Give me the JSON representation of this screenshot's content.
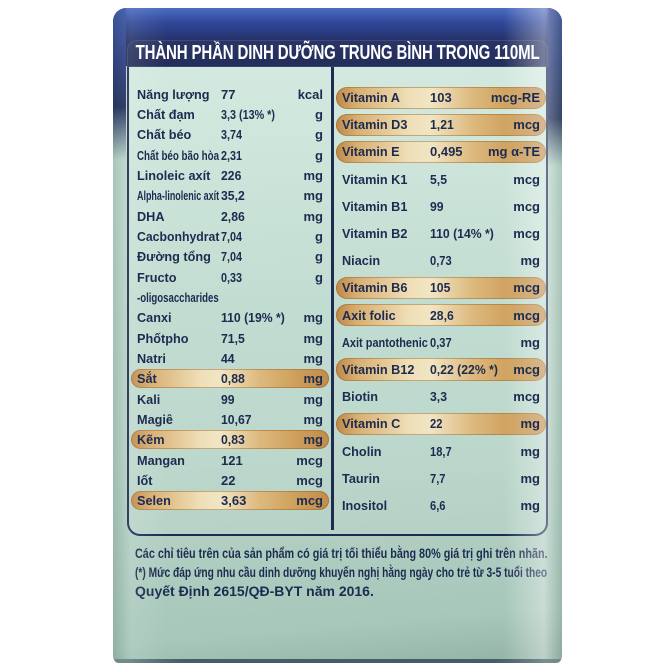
{
  "header": {
    "title": "THÀNH PHẦN DINH DƯỠNG TRUNG BÌNH TRONG 110ML"
  },
  "table": {
    "left_rows": [
      {
        "label": "Năng lượng",
        "value": "77",
        "unit": "kcal",
        "highlight": false
      },
      {
        "label": "Chất đạm",
        "value": "3,3 (13% *)",
        "unit": "g",
        "highlight": false
      },
      {
        "label": "Chất béo",
        "value": "3,74",
        "unit": "g",
        "highlight": false
      },
      {
        "label": "Chất béo bão hòa",
        "value": "2,31",
        "unit": "g",
        "highlight": false
      },
      {
        "label": "Linoleic axít",
        "value": "226",
        "unit": "mg",
        "highlight": false
      },
      {
        "label": "Alpha-linolenic axít",
        "value": "35,2",
        "unit": "mg",
        "highlight": false
      },
      {
        "label": "DHA",
        "value": "2,86",
        "unit": "mg",
        "highlight": false
      },
      {
        "label": "Cacbonhydrat",
        "value": "7,04",
        "unit": "g",
        "highlight": false
      },
      {
        "label": "Đường tổng",
        "value": "7,04",
        "unit": "g",
        "highlight": false
      },
      {
        "label": "Fructo",
        "value": "0,33",
        "unit": "g",
        "highlight": false
      },
      {
        "label": "-oligosaccharides",
        "value": "",
        "unit": "",
        "highlight": false
      },
      {
        "label": "Canxi",
        "value": "110 (19% *)",
        "unit": "mg",
        "highlight": false
      },
      {
        "label": "Phốtpho",
        "value": "71,5",
        "unit": "mg",
        "highlight": false
      },
      {
        "label": "Natri",
        "value": "44",
        "unit": "mg",
        "highlight": false
      },
      {
        "label": "Sắt",
        "value": "0,88",
        "unit": "mg",
        "highlight": true
      },
      {
        "label": "Kali",
        "value": "99",
        "unit": "mg",
        "highlight": false
      },
      {
        "label": "Magiê",
        "value": "10,67",
        "unit": "mg",
        "highlight": false
      },
      {
        "label": "Kẽm",
        "value": "0,83",
        "unit": "mg",
        "highlight": true
      },
      {
        "label": "Mangan",
        "value": "121",
        "unit": "mcg",
        "highlight": false
      },
      {
        "label": "Iốt",
        "value": "22",
        "unit": "mcg",
        "highlight": false
      },
      {
        "label": "Selen",
        "value": "3,63",
        "unit": "mcg",
        "highlight": true
      }
    ],
    "right_rows": [
      {
        "label": "Vitamin A",
        "value": "103",
        "unit": "mcg-RE",
        "highlight": true
      },
      {
        "label": "Vitamin D3",
        "value": "1,21",
        "unit": "mcg",
        "highlight": true
      },
      {
        "label": "Vitamin E",
        "value": "0,495",
        "unit": "mg α-TE",
        "highlight": true
      },
      {
        "label": "Vitamin K1",
        "value": "5,5",
        "unit": "mcg",
        "highlight": false
      },
      {
        "label": "Vitamin B1",
        "value": "99",
        "unit": "mcg",
        "highlight": false
      },
      {
        "label": "Vitamin B2",
        "value": "110 (14% *)",
        "unit": "mcg",
        "highlight": false
      },
      {
        "label": "Niacin",
        "value": "0,73",
        "unit": "mg",
        "highlight": false
      },
      {
        "label": "Vitamin B6",
        "value": "105",
        "unit": "mcg",
        "highlight": true
      },
      {
        "label": "Axit folic",
        "value": "28,6",
        "unit": "mcg",
        "highlight": true
      },
      {
        "label": "Axit pantothenic",
        "value": "0,37",
        "unit": "mg",
        "highlight": false
      },
      {
        "label": "Vitamin B12",
        "value": "0,22 (22% *)",
        "unit": "mcg",
        "highlight": true
      },
      {
        "label": "Biotin",
        "value": "3,3",
        "unit": "mcg",
        "highlight": false
      },
      {
        "label": "Vitamin C",
        "value": "22",
        "unit": "mg",
        "highlight": true
      },
      {
        "label": "Cholin",
        "value": "18,7",
        "unit": "mg",
        "highlight": false
      },
      {
        "label": "Taurin",
        "value": "7,7",
        "unit": "mg",
        "highlight": false
      },
      {
        "label": "Inositol",
        "value": "6,6",
        "unit": "mg",
        "highlight": false
      }
    ]
  },
  "footer": {
    "lines": [
      "Các chỉ tiêu trên của sản phẩm có giá trị tối thiểu bằng 80% giá trị ghi trên nhãn.",
      "(*) Mức đáp ứng nhu cầu dinh dưỡng khuyến nghị hằng ngày cho trẻ từ 3-5 tuổi theo",
      "Quyết Định 2615/QĐ-BYT năm 2016."
    ]
  },
  "colors": {
    "carton_blue": "#31479a",
    "panel_navy": "#202b52",
    "mint_face": "#bedacd",
    "highlight_gold": "#e3c48d",
    "text_navy": "#1d2b50",
    "title_white": "#ffffff"
  }
}
